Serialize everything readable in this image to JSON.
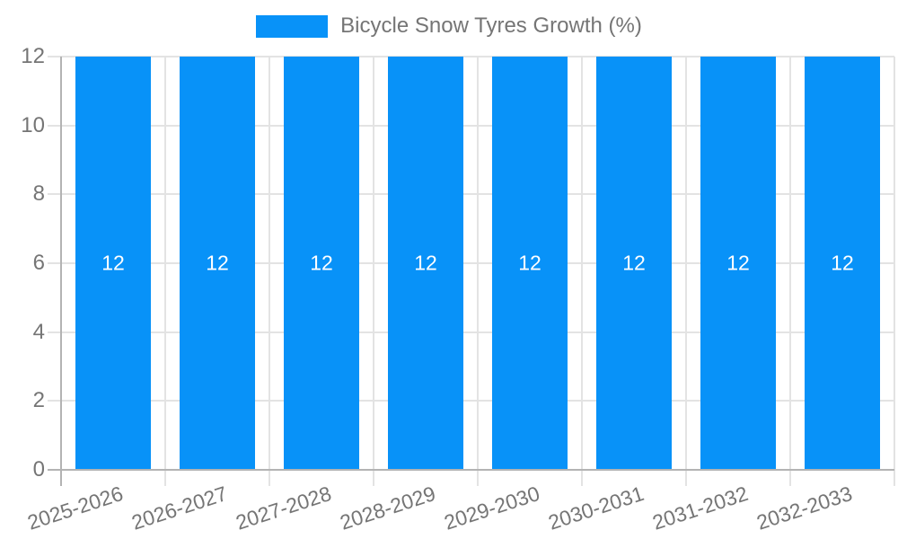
{
  "chart_data": {
    "type": "bar",
    "title": "Bicycle Snow Tyres Growth (%)",
    "categories": [
      "2025-2026",
      "2026-2027",
      "2027-2028",
      "2028-2029",
      "2029-2030",
      "2030-2031",
      "2031-2032",
      "2032-2033"
    ],
    "series": [
      {
        "name": "Bicycle Snow Tyres Growth (%)",
        "values": [
          12,
          12,
          12,
          12,
          12,
          12,
          12,
          12
        ]
      }
    ],
    "bar_value_labels": [
      "12",
      "12",
      "12",
      "12",
      "12",
      "12",
      "12",
      "12"
    ],
    "xlabel": "",
    "ylabel": "",
    "ylim": [
      0,
      12
    ],
    "yticks": [
      0,
      2,
      4,
      6,
      8,
      10,
      12
    ],
    "grid": true,
    "legend_position": "top-center",
    "colors": {
      "bar": "#0892f8",
      "grid": "#e3e3e3",
      "axis": "#b3b3b3",
      "tick_text": "#757575",
      "bar_label_text": "#ffffff",
      "background": "#ffffff"
    }
  },
  "legend": {
    "items": [
      {
        "label": "Bicycle Snow Tyres Growth (%)",
        "swatch_color": "#0892f8"
      }
    ]
  }
}
